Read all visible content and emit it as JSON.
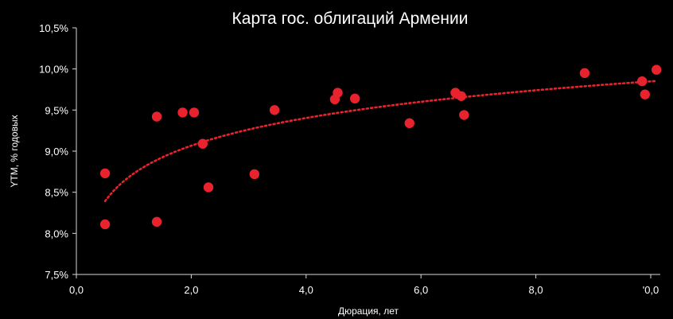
{
  "chart_data": {
    "type": "scatter",
    "title": "Карта гос. облигаций Армении",
    "xlabel": "Дюрация, лет",
    "ylabel": "YTM, % годовых",
    "xlim": [
      0,
      10
    ],
    "ylim": [
      7.5,
      10.5
    ],
    "x_ticks": [
      "0,0",
      "2,0",
      "4,0",
      "6,0",
      "8,0",
      "'0,0"
    ],
    "x_tick_values": [
      0,
      2,
      4,
      6,
      8,
      10
    ],
    "y_ticks": [
      "7,5%",
      "8,0%",
      "8,5%",
      "9,0%",
      "9,5%",
      "10,0%",
      "10,5%"
    ],
    "y_tick_values": [
      7.5,
      8.0,
      8.5,
      9.0,
      9.5,
      10.0,
      10.5
    ],
    "grid": false,
    "point_color": "#e8232e",
    "trendline": {
      "type": "logarithmic",
      "style": "dotted",
      "color": "#e8232e"
    },
    "points": [
      {
        "x": 0.5,
        "y": 8.73
      },
      {
        "x": 0.5,
        "y": 8.11
      },
      {
        "x": 1.4,
        "y": 9.42
      },
      {
        "x": 1.4,
        "y": 8.14
      },
      {
        "x": 1.85,
        "y": 9.47
      },
      {
        "x": 2.05,
        "y": 9.47
      },
      {
        "x": 2.2,
        "y": 9.09
      },
      {
        "x": 2.3,
        "y": 8.56
      },
      {
        "x": 3.1,
        "y": 8.72
      },
      {
        "x": 3.45,
        "y": 9.5
      },
      {
        "x": 4.5,
        "y": 9.63
      },
      {
        "x": 4.55,
        "y": 9.71
      },
      {
        "x": 4.85,
        "y": 9.64
      },
      {
        "x": 5.8,
        "y": 9.34
      },
      {
        "x": 6.6,
        "y": 9.71
      },
      {
        "x": 6.7,
        "y": 9.67
      },
      {
        "x": 6.75,
        "y": 9.44
      },
      {
        "x": 8.85,
        "y": 9.95
      },
      {
        "x": 9.85,
        "y": 9.85
      },
      {
        "x": 9.9,
        "y": 9.69
      },
      {
        "x": 10.1,
        "y": 9.99
      }
    ]
  }
}
